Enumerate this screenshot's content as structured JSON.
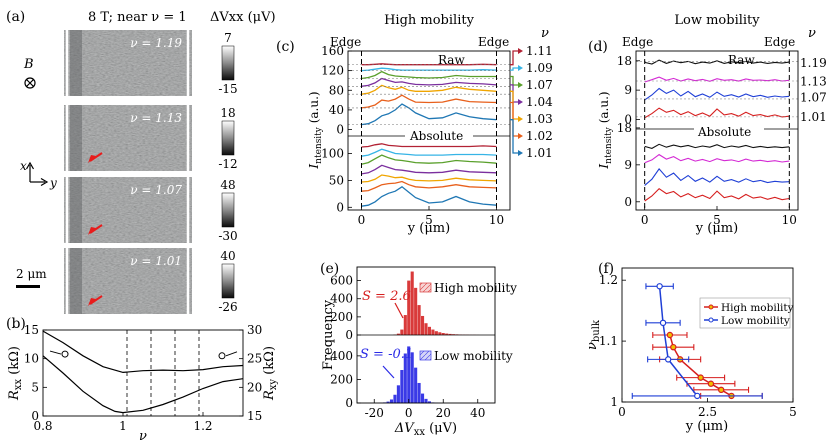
{
  "panels": {
    "a": {
      "label": "(a)",
      "title": "8 T; near ν = 1",
      "colorbar_label": "ΔVxx (μV)",
      "field_label": "B",
      "axis_x": "x",
      "axis_y": "y",
      "scalebar": "2 μm",
      "maps": [
        {
          "nu_label": "ν = 1.19",
          "cmax": "7",
          "cmin": "-15"
        },
        {
          "nu_label": "ν = 1.13",
          "cmax": "18",
          "cmin": "-12"
        },
        {
          "nu_label": "ν = 1.07",
          "cmax": "48",
          "cmin": "-30"
        },
        {
          "nu_label": "ν = 1.01",
          "cmax": "40",
          "cmin": "-26"
        }
      ]
    },
    "b": {
      "label": "(b)"
    },
    "c": {
      "label": "(c)",
      "edge_left": "Edge",
      "edge_right": "Edge",
      "raw": "Raw",
      "absolute": "Absolute"
    },
    "d": {
      "label": "(d)",
      "edge_left": "Edge",
      "edge_right": "Edge",
      "raw": "Raw",
      "absolute": "Absolute"
    },
    "e": {
      "label": "(e)",
      "skew_high": "S = 2.6",
      "skew_low": "S = -0.1"
    },
    "f": {
      "label": "(f)"
    }
  },
  "chart_data": [
    {
      "id": "b",
      "type": "line",
      "xlabel": "ν",
      "ylabel": "Rxx (kΩ)",
      "y2label": "Rxy (kΩ)",
      "xlim": [
        0.8,
        1.3
      ],
      "ylim": [
        0,
        15
      ],
      "y2lim": [
        15,
        30
      ],
      "xticks": [
        0.8,
        1,
        1.2
      ],
      "yticks": [
        0,
        5,
        10,
        15
      ],
      "y2ticks": [
        15,
        20,
        25,
        30
      ],
      "series": [
        {
          "axis": "left",
          "x": [
            0.8,
            0.85,
            0.9,
            0.95,
            1.0,
            1.05,
            1.1,
            1.15,
            1.2,
            1.25,
            1.3
          ],
          "values": [
            14.8,
            12.8,
            10.5,
            8.6,
            7.6,
            7.9,
            8.0,
            7.9,
            8.1,
            8.6,
            8.8
          ]
        },
        {
          "axis": "right",
          "x": [
            0.8,
            0.85,
            0.9,
            0.95,
            0.98,
            1.0,
            1.05,
            1.1,
            1.15,
            1.2,
            1.25,
            1.3
          ],
          "values": [
            25.5,
            22.5,
            19.3,
            16.8,
            15.8,
            15.6,
            16.0,
            17.0,
            18.3,
            19.8,
            21.0,
            21.5
          ]
        }
      ],
      "vlines": [
        1.01,
        1.07,
        1.13,
        1.19
      ]
    },
    {
      "id": "c",
      "type": "line",
      "title": "High mobility",
      "xlabel": "y (μm)",
      "ylabel": "Intensity (a.u.)",
      "xlim": [
        -1,
        11
      ],
      "ylim": [
        -5,
        160
      ],
      "xticks": [
        0,
        5,
        10
      ],
      "yticks": [
        0,
        40,
        80,
        120,
        160
      ],
      "yticks_lower": [
        0,
        50,
        100
      ],
      "legend_title": "ν",
      "legend": [
        "1.11",
        "1.09",
        "1.07",
        "1.04",
        "1.03",
        "1.02",
        "1.01"
      ],
      "colors": [
        "#b22234",
        "#36b4e6",
        "#5aa02c",
        "#7b2f9e",
        "#f0a500",
        "#e8601c",
        "#1f77b4"
      ],
      "x": [
        0,
        0.5,
        1,
        1.5,
        2,
        2.5,
        3,
        3.5,
        4,
        5,
        6,
        7,
        8,
        9,
        10
      ],
      "raw_series": [
        {
          "name": "1.11",
          "values": [
            132,
            132,
            133,
            134,
            133,
            132,
            132,
            132,
            132,
            132,
            132,
            132,
            132,
            133,
            132
          ]
        },
        {
          "name": "1.09",
          "values": [
            120,
            121,
            123,
            125,
            124,
            122,
            121,
            121,
            121,
            121,
            121,
            121,
            121,
            122,
            121
          ]
        },
        {
          "name": "1.07",
          "values": [
            104,
            106,
            110,
            118,
            112,
            109,
            108,
            107,
            106,
            105,
            106,
            110,
            108,
            108,
            108
          ]
        },
        {
          "name": "1.04",
          "values": [
            88,
            90,
            95,
            104,
            100,
            96,
            97,
            94,
            92,
            91,
            92,
            96,
            94,
            93,
            91
          ]
        },
        {
          "name": "1.03",
          "values": [
            72,
            74,
            80,
            90,
            85,
            82,
            86,
            80,
            78,
            78,
            80,
            86,
            82,
            80,
            78
          ]
        },
        {
          "name": "1.02",
          "values": [
            44,
            46,
            50,
            60,
            58,
            62,
            70,
            62,
            56,
            55,
            56,
            62,
            57,
            56,
            55
          ]
        },
        {
          "name": "1.01",
          "values": [
            10,
            12,
            18,
            28,
            32,
            40,
            52,
            44,
            34,
            22,
            24,
            34,
            26,
            22,
            20
          ]
        }
      ],
      "abs_series": [
        {
          "name": "1.11",
          "values": [
            112,
            113,
            116,
            118,
            115,
            114,
            113,
            113,
            113,
            113,
            113,
            113,
            113,
            114,
            113
          ]
        },
        {
          "name": "1.09",
          "values": [
            95,
            97,
            102,
            108,
            104,
            100,
            99,
            98,
            97,
            97,
            97,
            98,
            98,
            98,
            97
          ]
        },
        {
          "name": "1.07",
          "values": [
            80,
            83,
            90,
            97,
            92,
            88,
            87,
            85,
            83,
            82,
            83,
            87,
            85,
            84,
            82
          ]
        },
        {
          "name": "1.04",
          "values": [
            62,
            64,
            70,
            78,
            74,
            70,
            69,
            67,
            65,
            64,
            65,
            69,
            66,
            65,
            64
          ]
        },
        {
          "name": "1.03",
          "values": [
            47,
            48,
            52,
            60,
            58,
            55,
            56,
            52,
            50,
            49,
            50,
            54,
            51,
            50,
            49
          ]
        },
        {
          "name": "1.02",
          "values": [
            30,
            31,
            36,
            42,
            44,
            45,
            48,
            42,
            38,
            36,
            38,
            42,
            38,
            37,
            36
          ]
        },
        {
          "name": "1.01",
          "values": [
            2,
            4,
            10,
            20,
            26,
            30,
            38,
            28,
            18,
            8,
            10,
            20,
            10,
            6,
            4
          ]
        }
      ]
    },
    {
      "id": "d",
      "type": "line",
      "title": "Low mobility",
      "xlabel": "y (μm)",
      "ylabel": "Intensity (a.u.)",
      "xlim": [
        -0.6,
        10.6
      ],
      "ylim": [
        -2,
        21
      ],
      "xticks": [
        0,
        5,
        10
      ],
      "yticks_raw": [
        0,
        9,
        18
      ],
      "yticks_abs": [
        0,
        9,
        18
      ],
      "legend_title": "ν",
      "legend": [
        "1.19",
        "1.13",
        "1.07",
        "1.01"
      ],
      "colors": [
        "#111111",
        "#d42ad4",
        "#1f3fd6",
        "#d61f1f"
      ],
      "x": [
        0,
        0.5,
        1,
        1.5,
        2,
        2.5,
        3,
        3.5,
        4,
        4.5,
        5,
        5.5,
        6,
        6.5,
        7,
        7.5,
        8,
        8.5,
        9,
        9.5,
        10
      ],
      "raw_series": [
        {
          "name": "1.19",
          "values": [
            17.5,
            17.0,
            18.2,
            17.2,
            17.9,
            17.4,
            17.8,
            17.1,
            17.6,
            17.3,
            18.0,
            17.2,
            17.7,
            17.4,
            17.8,
            17.3,
            17.6,
            17.2,
            17.5,
            17.3,
            17.6
          ]
        },
        {
          "name": "1.13",
          "values": [
            11.5,
            12.2,
            13.0,
            12.0,
            12.6,
            11.8,
            12.4,
            11.9,
            12.3,
            11.7,
            12.5,
            12.0,
            12.2,
            11.8,
            12.4,
            12.0,
            12.1,
            11.9,
            12.2,
            11.8,
            12.0
          ]
        },
        {
          "name": "1.07",
          "values": [
            6.0,
            7.5,
            9.5,
            8.0,
            9.0,
            7.2,
            8.6,
            7.0,
            7.8,
            6.8,
            8.4,
            7.1,
            7.6,
            6.9,
            7.8,
            7.0,
            7.4,
            6.8,
            7.2,
            6.9,
            7.1
          ]
        },
        {
          "name": "1.01",
          "values": [
            0.5,
            1.8,
            3.5,
            2.2,
            2.8,
            1.5,
            2.4,
            1.2,
            2.0,
            1.0,
            3.2,
            1.4,
            1.8,
            1.0,
            2.2,
            1.2,
            1.5,
            0.9,
            1.4,
            0.8,
            1.0
          ]
        }
      ],
      "abs_series": [
        {
          "name": "1.19",
          "values": [
            13.5,
            13.0,
            14.0,
            13.3,
            13.8,
            13.4,
            13.7,
            13.2,
            13.6,
            13.3,
            13.9,
            13.2,
            13.6,
            13.3,
            13.7,
            13.2,
            13.5,
            13.2,
            13.4,
            13.2,
            13.4
          ]
        },
        {
          "name": "1.13",
          "values": [
            9.5,
            10.2,
            11.5,
            10.4,
            11.0,
            10.0,
            10.6,
            9.9,
            10.3,
            9.8,
            10.5,
            10.0,
            10.2,
            9.8,
            10.4,
            9.9,
            10.1,
            9.8,
            10.0,
            9.7,
            9.9
          ]
        },
        {
          "name": "1.07",
          "values": [
            4.0,
            5.5,
            8.0,
            6.0,
            7.0,
            5.2,
            6.4,
            5.0,
            5.8,
            4.8,
            6.2,
            5.0,
            5.4,
            4.8,
            5.6,
            4.9,
            5.2,
            4.7,
            5.0,
            4.8,
            4.9
          ]
        },
        {
          "name": "1.01",
          "values": [
            0.2,
            1.4,
            3.2,
            2.0,
            2.5,
            1.2,
            2.0,
            1.0,
            1.6,
            0.8,
            2.6,
            1.0,
            1.4,
            0.7,
            1.8,
            0.9,
            1.2,
            0.6,
            1.1,
            0.5,
            0.8
          ]
        }
      ]
    },
    {
      "id": "e",
      "type": "bar",
      "xlabel": "ΔVxx (μV)",
      "ylabel": "Frequency",
      "xlim": [
        -30,
        50
      ],
      "xticks": [
        -20,
        0,
        20,
        40
      ],
      "yticks_top": [
        0,
        200,
        400,
        600
      ],
      "yticks_bottom": [
        0,
        200,
        400
      ],
      "series": [
        {
          "name": "High mobility",
          "color": "#d93a3a",
          "x": [
            -8,
            -6,
            -4,
            -2,
            0,
            2,
            4,
            6,
            8,
            10,
            12,
            14,
            16,
            18,
            20,
            22,
            24,
            26,
            28,
            30,
            32,
            34,
            36,
            38,
            40
          ],
          "values": [
            5,
            15,
            60,
            220,
            600,
            700,
            520,
            330,
            210,
            130,
            90,
            60,
            42,
            30,
            22,
            16,
            12,
            9,
            7,
            5,
            4,
            3,
            2,
            2,
            1
          ]
        },
        {
          "name": "Low mobility",
          "color": "#3a3ae6",
          "x": [
            -16,
            -14,
            -12,
            -10,
            -8,
            -6,
            -4,
            -2,
            0,
            2,
            4,
            6,
            8,
            10,
            12,
            14,
            16
          ],
          "values": [
            2,
            5,
            12,
            30,
            70,
            150,
            280,
            420,
            480,
            430,
            300,
            170,
            80,
            35,
            14,
            5,
            2
          ]
        }
      ]
    },
    {
      "id": "f",
      "type": "scatter",
      "xlabel": "y (μm)",
      "ylabel": "νbulk",
      "xlim": [
        0,
        5
      ],
      "ylim": [
        1,
        1.22
      ],
      "xticks": [
        0,
        2.5,
        5
      ],
      "yticks": [
        1,
        1.1,
        1.2
      ],
      "series": [
        {
          "name": "High mobility",
          "color": "#d61f1f",
          "x": [
            1.4,
            1.5,
            1.7,
            2.3,
            2.6,
            2.9,
            3.2
          ],
          "y": [
            1.11,
            1.09,
            1.07,
            1.04,
            1.03,
            1.02,
            1.01
          ],
          "xerr": [
            0.5,
            0.6,
            0.6,
            0.7,
            0.7,
            0.8,
            0.9
          ]
        },
        {
          "name": "Low mobility",
          "color": "#1f3fd6",
          "x": [
            1.1,
            1.2,
            1.35,
            2.2
          ],
          "y": [
            1.19,
            1.13,
            1.07,
            1.01
          ],
          "xerr": [
            0.4,
            0.5,
            0.6,
            1.9
          ]
        }
      ]
    }
  ]
}
